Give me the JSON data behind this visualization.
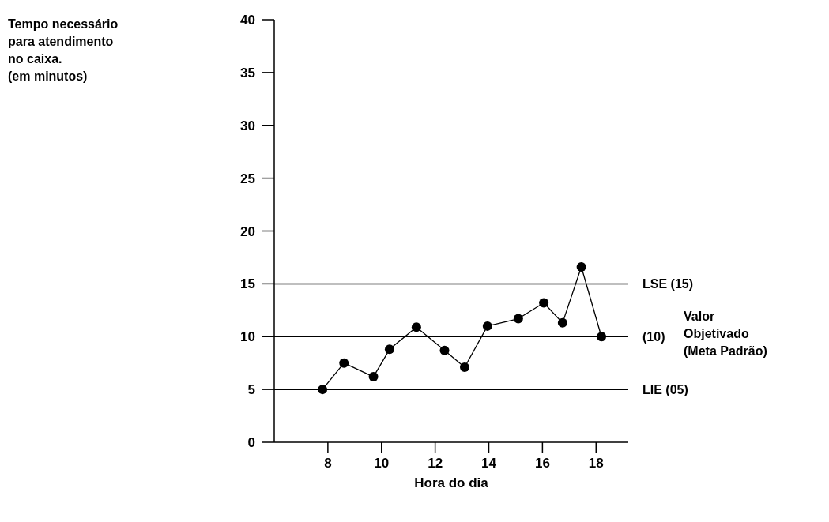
{
  "chart_data": {
    "type": "line",
    "xlabel": "Hora do dia",
    "x": [
      7.8,
      8.6,
      9.7,
      10.3,
      11.3,
      12.35,
      13.1,
      13.95,
      15.1,
      16.05,
      16.75,
      17.45,
      18.2
    ],
    "series": [
      {
        "color": "#000000",
        "values": [
          5,
          7.5,
          6.2,
          8.8,
          10.9,
          8.7,
          7.1,
          11,
          11.7,
          13.2,
          11.3,
          16.6,
          10
        ]
      }
    ],
    "xlim": [
      6,
      19.2
    ],
    "xticks": [
      8,
      10,
      12,
      14,
      16,
      18
    ],
    "ylim": [
      0,
      40
    ],
    "yticks": [
      0,
      5,
      10,
      15,
      20,
      25,
      30,
      35,
      40
    ],
    "ref_lines": [
      {
        "axis": "y",
        "value": 15,
        "label": "LSE (15)",
        "color": "#000000"
      },
      {
        "axis": "y",
        "value": 10,
        "label": "(10)",
        "color": "#000000"
      },
      {
        "axis": "y",
        "value": 5,
        "label": "LIE (05)",
        "color": "#000000"
      }
    ],
    "annotations": [
      "Tempo necessário\npara atendimento\nno caixa.\n(em minutos)",
      "Valor Objetivado (Meta Padrão)"
    ],
    "grid": false,
    "legend": false,
    "marker": "circle",
    "line_style": "solid"
  }
}
